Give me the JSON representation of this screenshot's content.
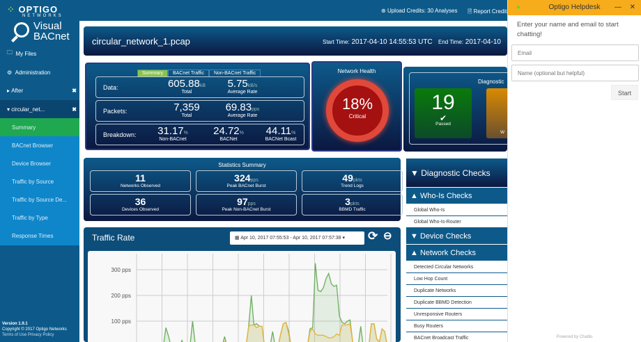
{
  "brand": {
    "company": "OPTIGO",
    "company_sub": "NETWORKS",
    "product_line1": "Visual",
    "product_line2": "BACnet"
  },
  "sidebar": {
    "items": [
      {
        "label": "My Files",
        "icon": "folder-icon"
      },
      {
        "label": "Administration",
        "icon": "gear-icon"
      }
    ],
    "files": [
      {
        "label": "After",
        "expanded": false
      },
      {
        "label": "circular_net...",
        "expanded": true
      }
    ],
    "subitems": [
      {
        "label": "Summary",
        "active": true
      },
      {
        "label": "BACnet Browser"
      },
      {
        "label": "Device Browser"
      },
      {
        "label": "Traffic by Source"
      },
      {
        "label": "Traffic by Source De..."
      },
      {
        "label": "Traffic by Type"
      },
      {
        "label": "Response Times"
      }
    ],
    "footer": {
      "version": "Version 1.9.1",
      "copyright": "Copyright © 2017 Optigo Networks",
      "links": "Terms of Use Privacy Policy"
    }
  },
  "topbar": {
    "upload_credits": "Upload Credits: 30 Analyses",
    "report_credits": "Report Credits"
  },
  "header": {
    "filename": "circular_network_1.pcap",
    "start_label": "Start Time:",
    "start_value": "2017-04-10 14:55:53 UTC",
    "end_label": "End Time:",
    "end_value": "2017-04-10"
  },
  "summary": {
    "tabs": [
      "Summary",
      "BACnet Traffic",
      "Non-BACnet Traffic"
    ],
    "data": {
      "label": "Data:",
      "total": "605.88",
      "total_unit": "kB",
      "total_label": "Total",
      "rate": "5.75",
      "rate_unit": "kB/s",
      "rate_label": "Average Rate"
    },
    "packets": {
      "label": "Packets:",
      "total": "7,359",
      "total_label": "Total",
      "rate": "69.83",
      "rate_unit": "pps",
      "rate_label": "Average Rate"
    },
    "breakdown": {
      "label": "Breakdown:",
      "items": [
        {
          "value": "31.17",
          "unit": "%",
          "label": "Non-BACnet"
        },
        {
          "value": "24.72",
          "unit": "%",
          "label": "BACNet"
        },
        {
          "value": "44.11",
          "unit": "%",
          "label": "BACNet Bcast"
        }
      ]
    }
  },
  "health": {
    "title": "Network Health",
    "value": "18%",
    "status": "Critical",
    "color": "#a51010"
  },
  "diagnostic_summary": {
    "title": "Diagnostic",
    "passed": "19",
    "passed_label": "Passed",
    "warn_label": "W"
  },
  "statistics": {
    "title": "Statistics Summary",
    "items": [
      {
        "value": "11",
        "unit": "",
        "label": "Networks Observed"
      },
      {
        "value": "324",
        "unit": "pps",
        "label": "Peak BACnet Burst"
      },
      {
        "value": "49",
        "unit": "pkts",
        "label": "Trend Logs"
      },
      {
        "value": "36",
        "unit": "",
        "label": "Devices Observed"
      },
      {
        "value": "97",
        "unit": "pps",
        "label": "Peak Non-BACnet Burst"
      },
      {
        "value": "3",
        "unit": "pkts",
        "label": "BBMD Traffic"
      }
    ]
  },
  "traffic": {
    "title": "Traffic Rate",
    "range": "Apr 10, 2017 07:55:53 - Apr 10, 2017 07:57:38"
  },
  "chart_data": {
    "type": "area",
    "ylim": [
      0,
      350
    ],
    "yticks": [
      "100 pps",
      "200 pps",
      "300 pps"
    ],
    "grid": true,
    "series": [
      {
        "color": "#6aaf5c",
        "values": [
          0,
          0,
          0,
          0,
          0,
          0,
          0,
          0,
          0,
          0,
          0,
          75,
          40,
          0,
          0,
          0,
          0,
          25,
          0,
          0,
          0,
          100,
          10,
          0,
          0,
          0,
          0,
          0,
          5,
          0,
          0,
          0,
          0,
          40,
          0,
          0,
          0,
          0,
          0,
          0,
          0,
          0,
          80,
          200,
          85,
          90,
          80,
          80,
          0,
          0,
          0,
          60,
          0,
          0,
          50,
          90,
          95,
          60,
          0,
          0,
          0,
          0,
          0,
          0,
          0,
          70,
          75,
          325,
          220,
          215,
          230,
          265,
          285,
          245,
          235,
          240,
          120,
          95,
          90,
          100,
          105,
          20,
          0,
          0,
          80,
          0,
          0,
          0,
          90,
          90,
          30,
          20,
          70,
          60,
          0
        ]
      },
      {
        "color": "#e8b23a",
        "values": [
          0,
          0,
          0,
          0,
          0,
          0,
          0,
          0,
          0,
          0,
          0,
          0,
          0,
          0,
          0,
          0,
          0,
          0,
          0,
          0,
          0,
          0,
          0,
          0,
          0,
          0,
          0,
          0,
          0,
          0,
          0,
          0,
          0,
          20,
          0,
          0,
          0,
          0,
          0,
          0,
          0,
          0,
          80,
          85,
          85,
          75,
          80,
          80,
          0,
          0,
          0,
          0,
          0,
          0,
          50,
          90,
          95,
          50,
          0,
          0,
          0,
          0,
          0,
          0,
          0,
          60,
          70,
          50,
          45,
          45,
          45,
          40,
          35,
          35,
          40,
          50,
          45,
          85,
          85,
          85,
          90,
          20,
          0,
          0,
          0,
          0,
          0,
          0,
          90,
          90,
          30,
          20,
          70,
          60,
          0
        ]
      }
    ]
  },
  "diagnostic_checks": {
    "title": "Diagnostic Checks",
    "groups": [
      {
        "title": "Who-Is Checks",
        "expanded": true,
        "items": [
          "Global Who-Is",
          "Global Who-Is-Router"
        ]
      },
      {
        "title": "Device Checks",
        "expanded": false,
        "items": []
      },
      {
        "title": "Network Checks",
        "expanded": true,
        "items": [
          "Detected Circular Networks",
          "Low Hop Count",
          "Duplicate Networks",
          "Duplicate BBMD Detection",
          "Unresponsive Routers",
          "Busy Routers",
          "BACnet Broadcast Traffic"
        ]
      }
    ]
  },
  "chat": {
    "title": "Optigo Helpdesk",
    "intro": "Enter your name and email to start chatting!",
    "email_placeholder": "Email",
    "name_placeholder": "Name (optional but helpful)",
    "start": "Start",
    "powered": "Powered by Chatlio"
  }
}
